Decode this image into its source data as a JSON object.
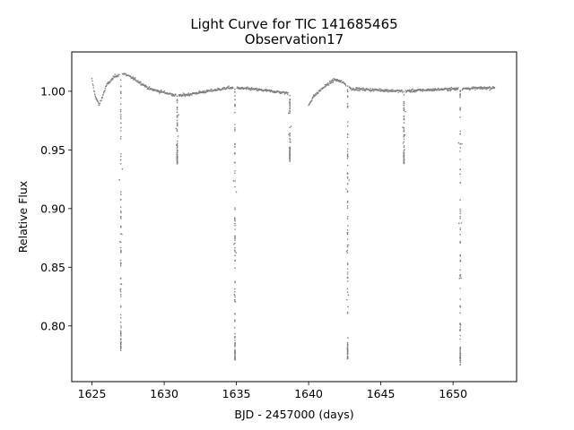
{
  "chart_data": {
    "type": "scatter",
    "title": "Light Curve for TIC 141685465",
    "subtitle": "Observation17",
    "xlabel": "BJD - 2457000 (days)",
    "ylabel": "Relative Flux",
    "xlim": [
      1623.6,
      1654.4
    ],
    "ylim": [
      0.7525,
      1.0335
    ],
    "xticks": [
      1625,
      1630,
      1635,
      1640,
      1645,
      1650
    ],
    "yticks": [
      0.8,
      0.85,
      0.9,
      0.95,
      1.0
    ],
    "xtick_labels": [
      "1625",
      "1630",
      "1635",
      "1640",
      "1645",
      "1650"
    ],
    "ytick_labels": [
      "0.80",
      "0.85",
      "0.90",
      "0.95",
      "1.00"
    ],
    "grid": false,
    "marker_color": "#7f7f7f",
    "observation_segments": [
      [
        1625.0,
        1638.8
      ],
      [
        1640.0,
        1652.9
      ]
    ],
    "baseline_trend": [
      {
        "x": 1625.0,
        "y": 1.01
      },
      {
        "x": 1625.2,
        "y": 0.997
      },
      {
        "x": 1625.5,
        "y": 0.988
      },
      {
        "x": 1626.0,
        "y": 1.005
      },
      {
        "x": 1626.6,
        "y": 1.013
      },
      {
        "x": 1627.2,
        "y": 1.015
      },
      {
        "x": 1628.0,
        "y": 1.01
      },
      {
        "x": 1629.0,
        "y": 1.002
      },
      {
        "x": 1630.0,
        "y": 0.999
      },
      {
        "x": 1631.0,
        "y": 0.996
      },
      {
        "x": 1632.0,
        "y": 0.998
      },
      {
        "x": 1633.0,
        "y": 1.0
      },
      {
        "x": 1634.5,
        "y": 1.003
      },
      {
        "x": 1636.0,
        "y": 1.002
      },
      {
        "x": 1637.5,
        "y": 1.0
      },
      {
        "x": 1638.8,
        "y": 0.998
      },
      {
        "x": 1640.0,
        "y": 0.988
      },
      {
        "x": 1640.3,
        "y": 0.995
      },
      {
        "x": 1641.0,
        "y": 1.003
      },
      {
        "x": 1641.8,
        "y": 1.01
      },
      {
        "x": 1642.3,
        "y": 1.008
      },
      {
        "x": 1643.0,
        "y": 1.002
      },
      {
        "x": 1645.0,
        "y": 1.001
      },
      {
        "x": 1646.5,
        "y": 1.0
      },
      {
        "x": 1648.0,
        "y": 1.001
      },
      {
        "x": 1650.0,
        "y": 1.002
      },
      {
        "x": 1652.9,
        "y": 1.003
      }
    ],
    "primary_eclipses": [
      {
        "x": 1627.0,
        "min_flux": 0.779
      },
      {
        "x": 1634.9,
        "min_flux": 0.771
      },
      {
        "x": 1642.7,
        "min_flux": 0.771
      },
      {
        "x": 1650.5,
        "min_flux": 0.767
      }
    ],
    "secondary_eclipses": [
      {
        "x": 1630.9,
        "min_flux": 0.938
      },
      {
        "x": 1638.7,
        "min_flux": 0.94
      },
      {
        "x": 1646.6,
        "min_flux": 0.938
      }
    ]
  }
}
